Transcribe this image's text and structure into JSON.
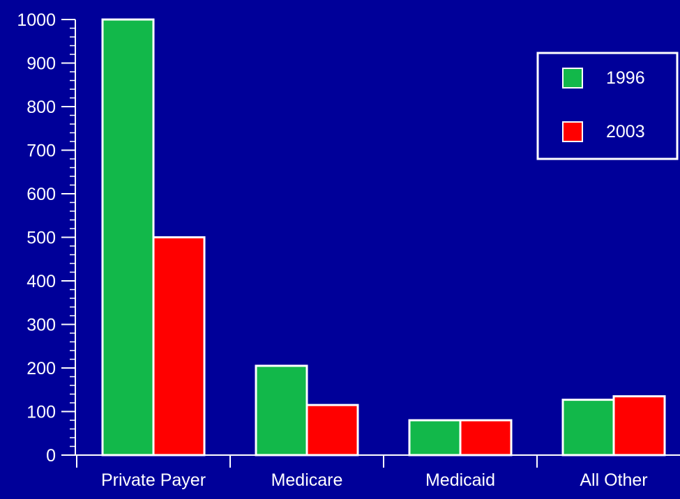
{
  "chart_data": {
    "type": "bar",
    "categories": [
      "Private Payer",
      "Medicare",
      "Medicaid",
      "All Other"
    ],
    "series": [
      {
        "name": "1996",
        "color": "#12b84a",
        "values": [
          1000,
          205,
          80,
          127
        ]
      },
      {
        "name": "2003",
        "color": "#ff0000",
        "values": [
          500,
          115,
          80,
          135
        ]
      }
    ],
    "ylim": [
      0,
      1000
    ],
    "yticks": [
      "0",
      "100",
      "200",
      "300",
      "400",
      "500",
      "600",
      "700",
      "800",
      "900",
      "1000"
    ],
    "grid": false,
    "legend_position": "top-right",
    "background_color": "#000099",
    "axis_color": "#ffffff",
    "bar_outline_color": "#ffffff"
  }
}
